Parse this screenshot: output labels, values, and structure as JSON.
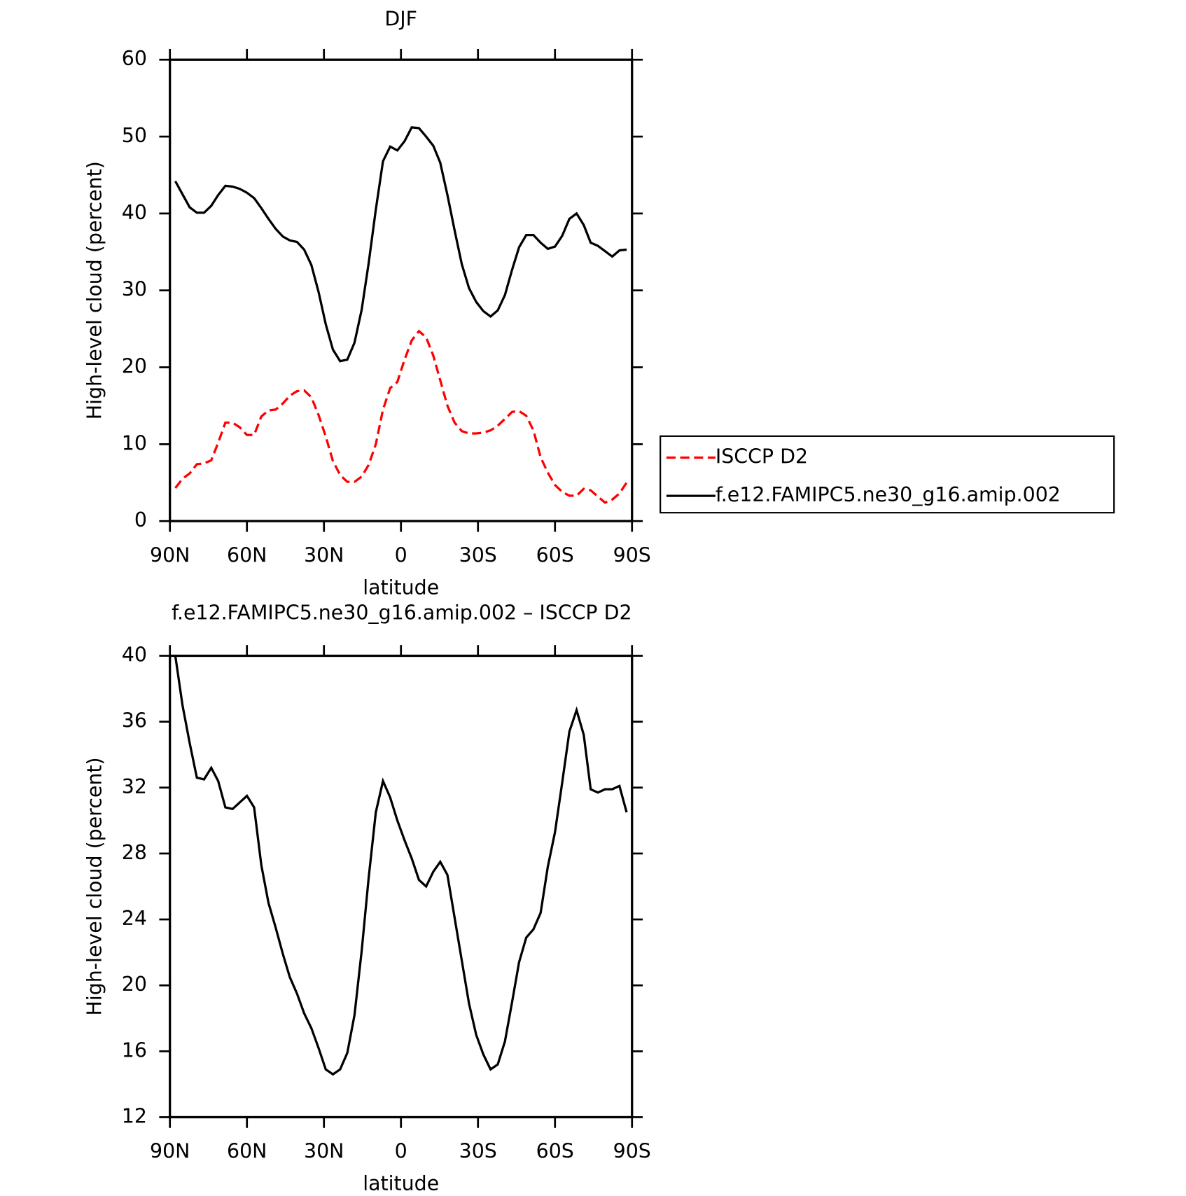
{
  "chart_data": [
    {
      "type": "line",
      "title": "DJF",
      "xlabel": "latitude",
      "ylabel": "High-level cloud (percent)",
      "x": [
        87.9,
        85.1,
        82.3,
        79.5,
        76.7,
        73.9,
        71.2,
        68.4,
        65.6,
        62.8,
        60.0,
        57.2,
        54.4,
        51.6,
        48.8,
        46.0,
        43.3,
        40.5,
        37.7,
        34.9,
        32.1,
        29.3,
        26.5,
        23.7,
        20.9,
        18.1,
        15.3,
        12.6,
        9.8,
        7.0,
        4.2,
        1.4,
        -1.4,
        -4.2,
        -7.0,
        -9.8,
        -12.6,
        -15.3,
        -18.1,
        -20.9,
        -23.7,
        -26.5,
        -29.3,
        -32.1,
        -34.9,
        -37.7,
        -40.5,
        -43.3,
        -46.0,
        -48.8,
        -51.6,
        -54.4,
        -57.2,
        -60.0,
        -62.8,
        -65.6,
        -68.4,
        -71.2,
        -73.9,
        -76.7,
        -79.5,
        -82.3,
        -85.1,
        -87.9
      ],
      "series": [
        {
          "name": "ISCCP D2",
          "color": "#ff0000",
          "dash": true,
          "values": [
            4.3,
            5.5,
            6.2,
            7.4,
            7.5,
            7.9,
            10.2,
            12.8,
            12.8,
            12.2,
            11.2,
            11.2,
            13.6,
            14.4,
            14.5,
            15.3,
            16.3,
            16.9,
            17.0,
            16.1,
            13.8,
            11.0,
            7.8,
            6.0,
            5.1,
            5.1,
            5.8,
            7.3,
            10.0,
            14.5,
            17.3,
            18.1,
            21.0,
            23.5,
            24.7,
            23.9,
            21.5,
            18.3,
            15.0,
            12.8,
            11.7,
            11.4,
            11.4,
            11.5,
            11.8,
            12.4,
            13.3,
            14.2,
            14.3,
            13.7,
            11.8,
            8.3,
            6.3,
            4.7,
            3.8,
            3.3,
            3.3,
            4.2,
            4.0,
            3.2,
            2.4,
            2.8,
            3.6,
            5.0
          ]
        },
        {
          "name": "f.e12.FAMIPC5.ne30_g16.amip.002",
          "color": "#000000",
          "dash": false,
          "values": [
            44.2,
            42.5,
            40.8,
            40.1,
            40.1,
            41.0,
            42.4,
            43.6,
            43.5,
            43.2,
            42.7,
            42.0,
            40.7,
            39.3,
            38.0,
            37.0,
            36.5,
            36.3,
            35.3,
            33.3,
            29.8,
            25.6,
            22.3,
            20.8,
            21.0,
            23.2,
            27.5,
            33.5,
            40.5,
            46.8,
            48.7,
            48.2,
            49.4,
            51.2,
            51.1,
            50.0,
            48.8,
            46.6,
            42.4,
            37.8,
            33.4,
            30.3,
            28.5,
            27.3,
            26.6,
            27.4,
            29.4,
            32.7,
            35.6,
            37.2,
            37.2,
            36.2,
            35.4,
            35.7,
            37.1,
            39.3,
            40.0,
            38.5,
            36.2,
            35.8,
            35.1,
            34.4,
            35.2,
            35.3
          ]
        }
      ],
      "xlim": [
        90,
        -90
      ],
      "xticks": [
        {
          "value": 90,
          "label": "90N"
        },
        {
          "value": 60,
          "label": "60N"
        },
        {
          "value": 30,
          "label": "30N"
        },
        0,
        {
          "value": -30,
          "label": "30S"
        },
        {
          "value": -60,
          "label": "60S"
        },
        {
          "value": -90,
          "label": "90S"
        }
      ],
      "ylim": [
        0,
        60
      ],
      "yticks": [
        0,
        10,
        20,
        30,
        40,
        50,
        60
      ],
      "legend": "right"
    },
    {
      "type": "line",
      "title": "f.e12.FAMIPC5.ne30_g16.amip.002 – ISCCP D2",
      "xlabel": "latitude",
      "ylabel": "High-level cloud (percent)",
      "x": [
        87.9,
        85.1,
        82.3,
        79.5,
        76.7,
        73.9,
        71.2,
        68.4,
        65.6,
        62.8,
        60.0,
        57.2,
        54.4,
        51.6,
        48.8,
        46.0,
        43.3,
        40.5,
        37.7,
        34.9,
        32.1,
        29.3,
        26.5,
        23.7,
        20.9,
        18.1,
        15.3,
        12.6,
        9.8,
        7.0,
        4.2,
        1.4,
        -1.4,
        -4.2,
        -7.0,
        -9.8,
        -12.6,
        -15.3,
        -18.1,
        -20.9,
        -23.7,
        -26.5,
        -29.3,
        -32.1,
        -34.9,
        -37.7,
        -40.5,
        -43.3,
        -46.0,
        -48.8,
        -51.6,
        -54.4,
        -57.2,
        -60.0,
        -62.8,
        -65.6,
        -68.4,
        -71.2,
        -73.9,
        -76.7,
        -79.5,
        -82.3,
        -85.1,
        -87.9
      ],
      "series": [
        {
          "color": "#000000",
          "dash": false,
          "values": [
            40.0,
            37.0,
            34.7,
            32.6,
            32.5,
            33.2,
            32.4,
            30.8,
            30.7,
            31.1,
            31.5,
            30.8,
            27.3,
            25.0,
            23.5,
            21.9,
            20.5,
            19.5,
            18.3,
            17.4,
            16.2,
            14.9,
            14.6,
            14.9,
            15.9,
            18.2,
            22.1,
            26.5,
            30.5,
            32.4,
            31.4,
            30.0,
            28.8,
            27.7,
            26.4,
            26.0,
            26.9,
            27.5,
            26.7,
            24.1,
            21.5,
            18.9,
            17.0,
            15.8,
            14.9,
            15.2,
            16.6,
            19.0,
            21.4,
            22.9,
            23.4,
            24.4,
            27.2,
            29.3,
            32.3,
            35.4,
            36.7,
            35.2,
            31.9,
            31.7,
            31.9,
            31.9,
            32.1,
            30.5
          ]
        }
      ],
      "xlim": [
        90,
        -90
      ],
      "xticks": [
        {
          "value": 90,
          "label": "90N"
        },
        {
          "value": 60,
          "label": "60N"
        },
        {
          "value": 30,
          "label": "30N"
        },
        0,
        {
          "value": -30,
          "label": "30S"
        },
        {
          "value": -60,
          "label": "60S"
        },
        {
          "value": -90,
          "label": "90S"
        }
      ],
      "ylim": [
        12,
        40
      ],
      "yticks": [
        12,
        16,
        20,
        24,
        28,
        32,
        36,
        40
      ]
    }
  ]
}
